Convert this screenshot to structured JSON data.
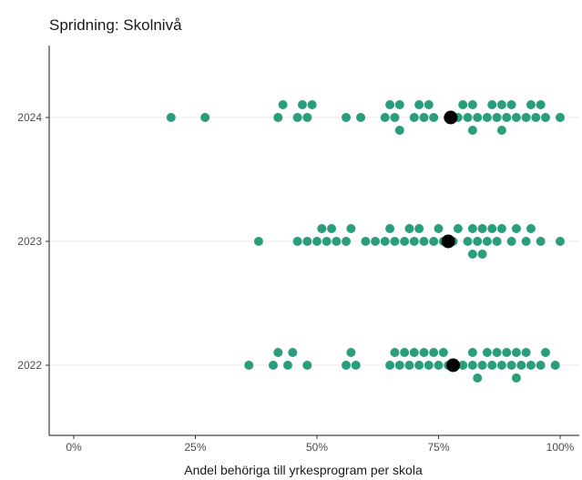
{
  "chart_data": {
    "type": "scatter",
    "title": "Spridning: Skolnivå",
    "xlabel": "Andel behöriga till yrkesprogram per skola",
    "ylabel": "",
    "xlim": [
      -0.02,
      1.02
    ],
    "x_ticks": [
      "0%",
      "25%",
      "50%",
      "75%",
      "100%"
    ],
    "x_tick_values": [
      0,
      0.25,
      0.5,
      0.75,
      1.0
    ],
    "categories": [
      "2022",
      "2023",
      "2024"
    ],
    "grid": "horizontal major lines at each year",
    "point_color": "#2a9d7c",
    "mean_color": "#000000",
    "series": [
      {
        "category": "2024",
        "values": [
          0.2,
          0.27,
          0.42,
          0.43,
          0.46,
          0.47,
          0.48,
          0.49,
          0.56,
          0.59,
          0.64,
          0.65,
          0.66,
          0.67,
          0.67,
          0.7,
          0.71,
          0.72,
          0.73,
          0.74,
          0.77,
          0.79,
          0.8,
          0.81,
          0.82,
          0.82,
          0.83,
          0.85,
          0.86,
          0.87,
          0.88,
          0.88,
          0.89,
          0.9,
          0.91,
          0.93,
          0.94,
          0.95,
          0.96,
          0.97,
          1.0
        ],
        "mean": 0.775
      },
      {
        "category": "2023",
        "values": [
          0.38,
          0.46,
          0.48,
          0.5,
          0.51,
          0.52,
          0.53,
          0.54,
          0.56,
          0.57,
          0.6,
          0.62,
          0.64,
          0.65,
          0.66,
          0.68,
          0.69,
          0.7,
          0.71,
          0.72,
          0.74,
          0.75,
          0.76,
          0.78,
          0.79,
          0.81,
          0.82,
          0.82,
          0.83,
          0.84,
          0.84,
          0.85,
          0.86,
          0.87,
          0.88,
          0.9,
          0.91,
          0.93,
          0.94,
          0.96,
          1.0
        ],
        "mean": 0.77
      },
      {
        "category": "2022",
        "values": [
          0.36,
          0.41,
          0.42,
          0.44,
          0.45,
          0.48,
          0.56,
          0.57,
          0.58,
          0.65,
          0.66,
          0.67,
          0.68,
          0.69,
          0.7,
          0.71,
          0.72,
          0.73,
          0.74,
          0.75,
          0.76,
          0.77,
          0.8,
          0.82,
          0.82,
          0.83,
          0.84,
          0.85,
          0.86,
          0.87,
          0.88,
          0.89,
          0.9,
          0.91,
          0.91,
          0.92,
          0.93,
          0.94,
          0.96,
          0.97,
          0.99
        ],
        "mean": 0.78
      }
    ]
  }
}
